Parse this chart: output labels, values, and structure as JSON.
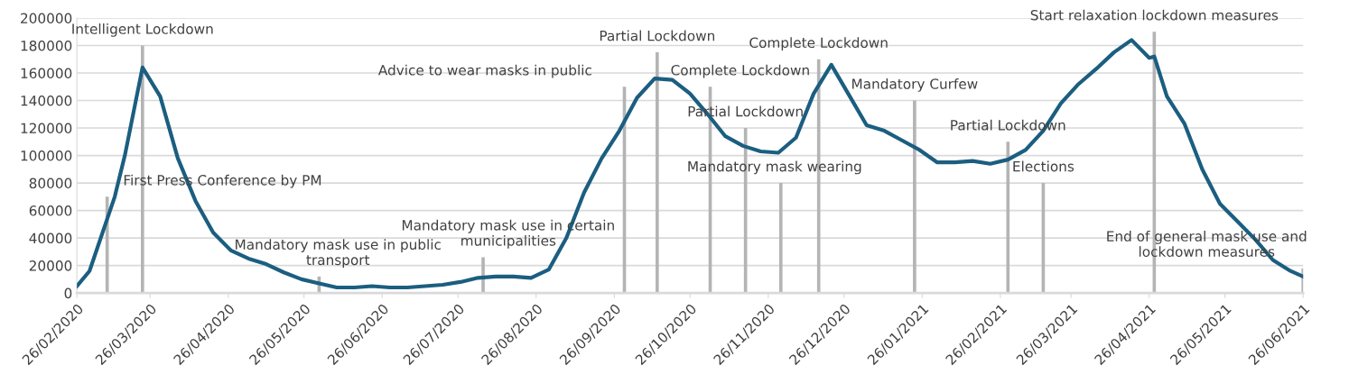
{
  "chart_data": {
    "type": "line",
    "grid": "y",
    "ylim": [
      0,
      200000
    ],
    "yticks": [
      0,
      20000,
      40000,
      60000,
      80000,
      100000,
      120000,
      140000,
      160000,
      180000,
      200000
    ],
    "xlim": [
      "2020-02-26",
      "2021-06-26"
    ],
    "xticks": [
      {
        "value": "2020-02-26",
        "label": "26/02/2020"
      },
      {
        "value": "2020-03-26",
        "label": "26/03/2020"
      },
      {
        "value": "2020-04-26",
        "label": "26/04/2020"
      },
      {
        "value": "2020-05-26",
        "label": "26/05/2020"
      },
      {
        "value": "2020-06-26",
        "label": "26/06/2020"
      },
      {
        "value": "2020-07-26",
        "label": "26/07/2020"
      },
      {
        "value": "2020-08-26",
        "label": "26/08/2020"
      },
      {
        "value": "2020-09-26",
        "label": "26/09/2020"
      },
      {
        "value": "2020-10-26",
        "label": "26/10/2020"
      },
      {
        "value": "2020-11-26",
        "label": "26/11/2020"
      },
      {
        "value": "2020-12-26",
        "label": "26/12/2020"
      },
      {
        "value": "2021-01-26",
        "label": "26/01/2021"
      },
      {
        "value": "2021-02-26",
        "label": "26/02/2021"
      },
      {
        "value": "2021-03-26",
        "label": "26/03/2021"
      },
      {
        "value": "2021-04-26",
        "label": "26/04/2021"
      },
      {
        "value": "2021-05-26",
        "label": "26/05/2021"
      },
      {
        "value": "2021-06-26",
        "label": "26/06/2021"
      }
    ],
    "series": [
      {
        "type": "bar",
        "color": "#b4b4b4",
        "x": [
          "2020-03-09",
          "2020-03-23",
          "2020-06-01",
          "2020-08-05",
          "2020-09-30",
          "2020-10-13",
          "2020-11-03",
          "2020-11-17",
          "2020-12-01",
          "2020-12-16",
          "2021-01-23",
          "2021-03-01",
          "2021-03-15",
          "2021-04-28",
          "2021-06-26"
        ],
        "values": [
          70000,
          180000,
          12000,
          26000,
          150000,
          175000,
          150000,
          120000,
          80000,
          170000,
          140000,
          110000,
          80000,
          190000,
          18000
        ]
      },
      {
        "color": "#1b5e80",
        "x": [
          "2020-02-26",
          "2020-03-02",
          "2020-03-12",
          "2020-03-16",
          "2020-03-23",
          "2020-03-30",
          "2020-04-06",
          "2020-04-13",
          "2020-04-20",
          "2020-04-27",
          "2020-05-04",
          "2020-05-11",
          "2020-05-18",
          "2020-05-25",
          "2020-06-01",
          "2020-06-08",
          "2020-06-15",
          "2020-06-22",
          "2020-06-29",
          "2020-07-06",
          "2020-07-13",
          "2020-07-20",
          "2020-07-27",
          "2020-08-03",
          "2020-08-10",
          "2020-08-17",
          "2020-08-24",
          "2020-08-31",
          "2020-09-07",
          "2020-09-14",
          "2020-09-21",
          "2020-09-28",
          "2020-10-05",
          "2020-10-12",
          "2020-10-19",
          "2020-10-26",
          "2020-11-02",
          "2020-11-09",
          "2020-11-16",
          "2020-11-23",
          "2020-11-30",
          "2020-12-07",
          "2020-12-14",
          "2020-12-21",
          "2020-12-28",
          "2021-01-04",
          "2021-01-11",
          "2021-01-18",
          "2021-01-25",
          "2021-02-01",
          "2021-02-08",
          "2021-02-15",
          "2021-02-22",
          "2021-03-01",
          "2021-03-08",
          "2021-03-15",
          "2021-03-22",
          "2021-03-29",
          "2021-04-05",
          "2021-04-12",
          "2021-04-19",
          "2021-04-26",
          "2021-04-28",
          "2021-05-03",
          "2021-05-10",
          "2021-05-17",
          "2021-05-24",
          "2021-05-31",
          "2021-06-07",
          "2021-06-14",
          "2021-06-21",
          "2021-06-26"
        ],
        "values": [
          5000,
          16000,
          70000,
          100000,
          164000,
          143000,
          98000,
          67000,
          44000,
          31000,
          25000,
          21000,
          15000,
          10000,
          7000,
          4000,
          4000,
          5000,
          4000,
          4000,
          5000,
          6000,
          8000,
          11000,
          12000,
          12000,
          11000,
          17000,
          40000,
          73000,
          98000,
          118000,
          142000,
          156000,
          155000,
          145000,
          130000,
          114000,
          107000,
          103000,
          102000,
          113000,
          145000,
          166000,
          144000,
          122000,
          118000,
          111000,
          104000,
          95000,
          95000,
          96000,
          94000,
          97000,
          104000,
          118000,
          138000,
          152000,
          163000,
          175000,
          184000,
          171000,
          172000,
          143000,
          123000,
          90000,
          65000,
          52000,
          39000,
          24000,
          16000,
          12000
        ]
      }
    ],
    "annotations": [
      {
        "text": "First Press Conference by PM",
        "x": "2020-03-09",
        "y": 70000
      },
      {
        "text": "Intelligent Lockdown",
        "x": "2020-03-23",
        "y": 180000
      },
      {
        "text": "Mandatory mask use in public\ntransport",
        "x": "2020-06-01",
        "y": 12000
      },
      {
        "text": "Mandatory mask use in certain\nmunicipalities",
        "x": "2020-08-05",
        "y": 26000
      },
      {
        "text": "Advice to wear masks in public",
        "x": "2020-09-30",
        "y": 150000
      },
      {
        "text": "Partial Lockdown",
        "x": "2020-10-13",
        "y": 175000
      },
      {
        "text": "Complete Lockdown",
        "x": "2020-11-03",
        "y": 150000
      },
      {
        "text": "Partial Lockdown",
        "x": "2020-11-17",
        "y": 120000
      },
      {
        "text": "Mandatory mask wearing",
        "x": "2020-12-01",
        "y": 80000
      },
      {
        "text": "Complete Lockdown",
        "x": "2020-12-16",
        "y": 170000
      },
      {
        "text": "Mandatory Curfew",
        "x": "2021-01-23",
        "y": 140000
      },
      {
        "text": "Partial Lockdown",
        "x": "2021-03-01",
        "y": 110000
      },
      {
        "text": "Elections",
        "x": "2021-03-15",
        "y": 80000
      },
      {
        "text": "Start relaxation lockdown measures",
        "x": "2021-04-28",
        "y": 190000
      },
      {
        "text": "End of general mask use and\nlockdown measures",
        "x": "2021-06-26",
        "y": 18000
      }
    ]
  }
}
